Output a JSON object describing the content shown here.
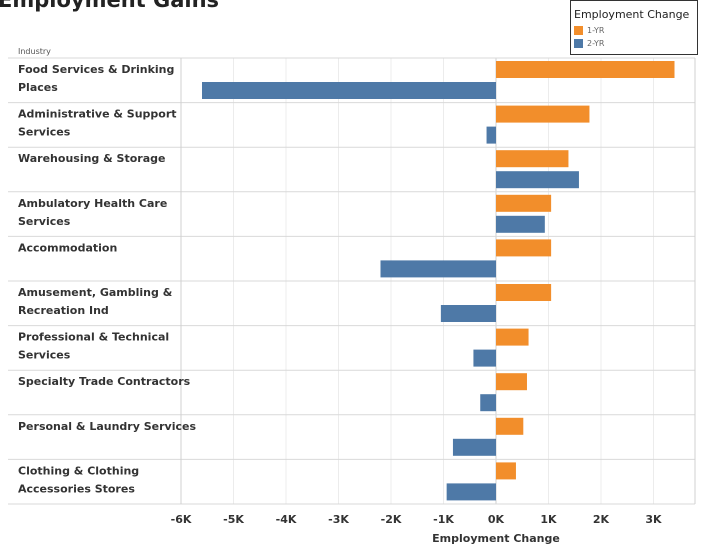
{
  "title": "Employment Gains",
  "legend": {
    "title": "Employment Change",
    "items": [
      {
        "label": "1-YR",
        "color": "#f28e2b"
      },
      {
        "label": "2-YR",
        "color": "#4e79a7"
      }
    ]
  },
  "chart_data": {
    "type": "bar",
    "orientation": "horizontal",
    "row_header": "Industry",
    "xlabel": "Employment Change",
    "xlim": [
      -6000,
      3300
    ],
    "x_ticks": [
      -6000,
      -5000,
      -4000,
      -3000,
      -2000,
      -1000,
      0,
      1000,
      2000,
      3000
    ],
    "x_tick_labels": [
      "-6K",
      "-5K",
      "-4K",
      "-3K",
      "-2K",
      "-1K",
      "0K",
      "1K",
      "2K",
      "3K"
    ],
    "grid": true,
    "legend_position": "top-right",
    "categories": [
      [
        "Food Services & Drinking",
        "Places"
      ],
      [
        "Administrative & Support",
        "Services"
      ],
      [
        "Warehousing & Storage"
      ],
      [
        "Ambulatory Health Care",
        "Services"
      ],
      [
        "Accommodation"
      ],
      [
        "Amusement, Gambling &",
        "Recreation Ind"
      ],
      [
        "Professional & Technical",
        "Services"
      ],
      [
        "Specialty Trade Contractors"
      ],
      [
        "Personal & Laundry Services"
      ],
      [
        "Clothing & Clothing",
        "Accessories Stores"
      ]
    ],
    "series": [
      {
        "name": "1-YR",
        "color": "#f28e2b",
        "values": [
          3400,
          1780,
          1380,
          1050,
          1050,
          1050,
          620,
          590,
          520,
          380
        ]
      },
      {
        "name": "2-YR",
        "color": "#4e79a7",
        "values": [
          -5600,
          -180,
          1580,
          930,
          -2200,
          -1050,
          -430,
          -300,
          -820,
          -940
        ]
      }
    ]
  }
}
